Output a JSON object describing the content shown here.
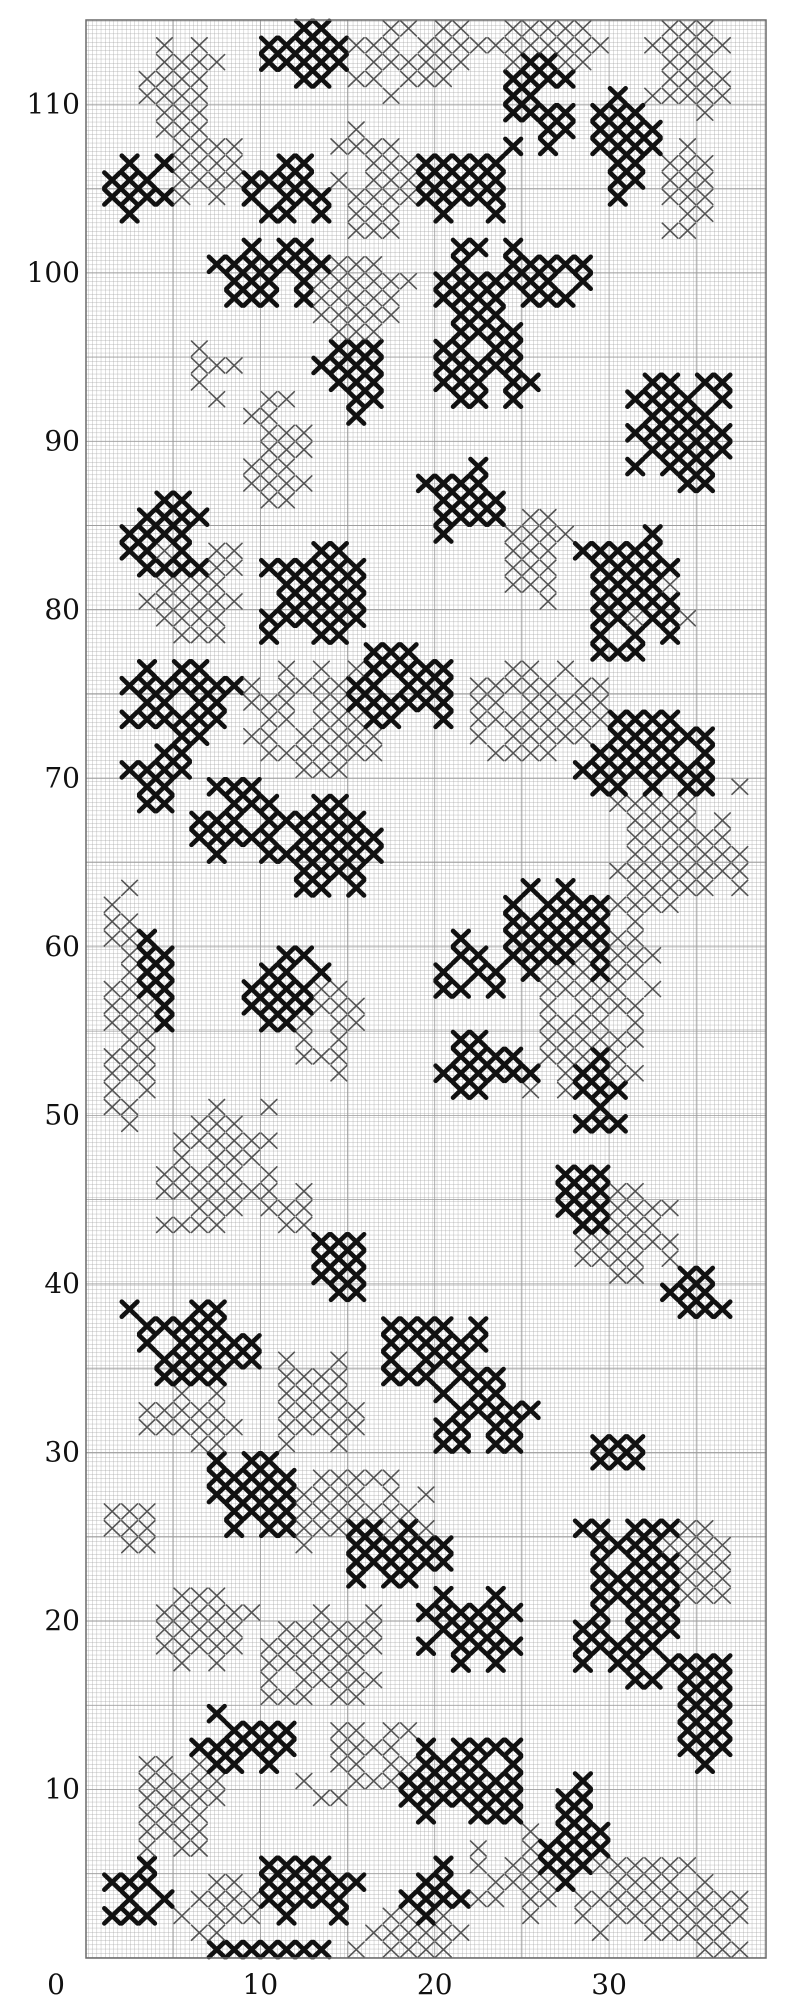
{
  "chart_data": {
    "type": "cross-stitch-chart",
    "x_axis": {
      "ticks": [
        0,
        10,
        20,
        30
      ],
      "labels": [
        "0",
        "10",
        "20",
        "30"
      ]
    },
    "y_axis": {
      "ticks": [
        10,
        20,
        30,
        40,
        50,
        60,
        70,
        80,
        90,
        100,
        110
      ],
      "labels": [
        "10",
        "20",
        "30",
        "40",
        "50",
        "60",
        "70",
        "80",
        "90",
        "100",
        "110"
      ]
    },
    "grid_cols": 39,
    "grid_rows": 115,
    "colors": {
      "background": "#ffffff",
      "grid": "#9a9a9a",
      "grid_major": "#6a6a6a",
      "dark_stitch": "#111111",
      "light_stitch": "#555555",
      "text": "#111111"
    },
    "motifs": [
      {
        "type": "dark",
        "x": [
          10,
          15
        ],
        "y": [
          111,
          115
        ]
      },
      {
        "type": "light",
        "x": [
          3,
          8
        ],
        "y": [
          108,
          114
        ]
      },
      {
        "type": "light",
        "x": [
          15,
          22
        ],
        "y": [
          110,
          115
        ]
      },
      {
        "type": "light",
        "x": [
          22,
          30
        ],
        "y": [
          112,
          115
        ]
      },
      {
        "type": "dark",
        "x": [
          24,
          28
        ],
        "y": [
          107,
          113
        ]
      },
      {
        "type": "dark",
        "x": [
          29,
          33
        ],
        "y": [
          104,
          111
        ]
      },
      {
        "type": "light",
        "x": [
          32,
          37
        ],
        "y": [
          109,
          115
        ]
      },
      {
        "type": "dark",
        "x": [
          1,
          5
        ],
        "y": [
          103,
          107
        ]
      },
      {
        "type": "light",
        "x": [
          4,
          9
        ],
        "y": [
          104,
          109
        ]
      },
      {
        "type": "dark",
        "x": [
          9,
          14
        ],
        "y": [
          103,
          107
        ]
      },
      {
        "type": "light",
        "x": [
          14,
          19
        ],
        "y": [
          102,
          109
        ]
      },
      {
        "type": "dark",
        "x": [
          19,
          24
        ],
        "y": [
          103,
          108
        ]
      },
      {
        "type": "light",
        "x": [
          33,
          36
        ],
        "y": [
          102,
          108
        ]
      },
      {
        "type": "dark",
        "x": [
          7,
          14
        ],
        "y": [
          98,
          102
        ]
      },
      {
        "type": "dark",
        "x": [
          19,
          30
        ],
        "y": [
          97,
          102
        ]
      },
      {
        "type": "light",
        "x": [
          13,
          19
        ],
        "y": [
          96,
          101
        ]
      },
      {
        "type": "dark",
        "x": [
          13,
          18
        ],
        "y": [
          91,
          96
        ]
      },
      {
        "type": "dark",
        "x": [
          20,
          26
        ],
        "y": [
          92,
          97
        ]
      },
      {
        "type": "light",
        "x": [
          5,
          9
        ],
        "y": [
          92,
          96
        ]
      },
      {
        "type": "dark",
        "x": [
          31,
          37
        ],
        "y": [
          87,
          94
        ]
      },
      {
        "type": "light",
        "x": [
          9,
          13
        ],
        "y": [
          85,
          93
        ]
      },
      {
        "type": "dark",
        "x": [
          2,
          7
        ],
        "y": [
          82,
          87
        ]
      },
      {
        "type": "light",
        "x": [
          3,
          9
        ],
        "y": [
          78,
          84
        ]
      },
      {
        "type": "dark",
        "x": [
          19,
          24
        ],
        "y": [
          84,
          89
        ]
      },
      {
        "type": "light",
        "x": [
          24,
          28
        ],
        "y": [
          80,
          86
        ]
      },
      {
        "type": "dark",
        "x": [
          10,
          16
        ],
        "y": [
          78,
          84
        ]
      },
      {
        "type": "dark",
        "x": [
          28,
          34
        ],
        "y": [
          77,
          85
        ]
      },
      {
        "type": "light",
        "x": [
          30,
          35
        ],
        "y": [
          78,
          82
        ]
      },
      {
        "type": "dark",
        "x": [
          2,
          9
        ],
        "y": [
          72,
          77
        ]
      },
      {
        "type": "light",
        "x": [
          9,
          17
        ],
        "y": [
          70,
          77
        ]
      },
      {
        "type": "dark",
        "x": [
          15,
          21
        ],
        "y": [
          73,
          78
        ]
      },
      {
        "type": "light",
        "x": [
          22,
          30
        ],
        "y": [
          71,
          77
        ]
      },
      {
        "type": "dark",
        "x": [
          28,
          36
        ],
        "y": [
          69,
          74
        ]
      },
      {
        "type": "dark",
        "x": [
          2,
          6
        ],
        "y": [
          67,
          72
        ]
      },
      {
        "type": "dark",
        "x": [
          6,
          12
        ],
        "y": [
          65,
          70
        ]
      },
      {
        "type": "dark",
        "x": [
          11,
          17
        ],
        "y": [
          63,
          69
        ]
      },
      {
        "type": "light",
        "x": [
          30,
          38
        ],
        "y": [
          62,
          70
        ]
      },
      {
        "type": "dark",
        "x": [
          24,
          30
        ],
        "y": [
          58,
          64
        ]
      },
      {
        "type": "light",
        "x": [
          26,
          33
        ],
        "y": [
          56,
          63
        ]
      },
      {
        "type": "dark",
        "x": [
          20,
          26
        ],
        "y": [
          57,
          61
        ]
      },
      {
        "type": "light",
        "x": [
          1,
          4
        ],
        "y": [
          47,
          64
        ]
      },
      {
        "type": "dark",
        "x": [
          3,
          5
        ],
        "y": [
          55,
          62
        ]
      },
      {
        "type": "dark",
        "x": [
          9,
          14
        ],
        "y": [
          55,
          60
        ]
      },
      {
        "type": "light",
        "x": [
          12,
          16
        ],
        "y": [
          52,
          58
        ]
      },
      {
        "type": "dark",
        "x": [
          20,
          26
        ],
        "y": [
          51,
          55
        ]
      },
      {
        "type": "light",
        "x": [
          25,
          32
        ],
        "y": [
          51,
          57
        ]
      },
      {
        "type": "dark",
        "x": [
          28,
          31
        ],
        "y": [
          49,
          54
        ]
      },
      {
        "type": "light",
        "x": [
          4,
          11
        ],
        "y": [
          43,
          51
        ]
      },
      {
        "type": "light",
        "x": [
          10,
          14
        ],
        "y": [
          42,
          46
        ]
      },
      {
        "type": "dark",
        "x": [
          13,
          16
        ],
        "y": [
          38,
          44
        ]
      },
      {
        "type": "dark",
        "x": [
          26,
          30
        ],
        "y": [
          43,
          48
        ]
      },
      {
        "type": "light",
        "x": [
          28,
          34
        ],
        "y": [
          40,
          46
        ]
      },
      {
        "type": "dark",
        "x": [
          33,
          37
        ],
        "y": [
          38,
          41
        ]
      },
      {
        "type": "dark",
        "x": [
          2,
          10
        ],
        "y": [
          34,
          39
        ]
      },
      {
        "type": "dark",
        "x": [
          16,
          23
        ],
        "y": [
          34,
          38
        ]
      },
      {
        "type": "light",
        "x": [
          10,
          16
        ],
        "y": [
          30,
          36
        ]
      },
      {
        "type": "dark",
        "x": [
          20,
          26
        ],
        "y": [
          30,
          35
        ]
      },
      {
        "type": "light",
        "x": [
          3,
          9
        ],
        "y": [
          30,
          34
        ]
      },
      {
        "type": "dark",
        "x": [
          29,
          32
        ],
        "y": [
          28,
          31
        ]
      },
      {
        "type": "light",
        "x": [
          1,
          4
        ],
        "y": [
          24,
          27
        ]
      },
      {
        "type": "dark",
        "x": [
          7,
          12
        ],
        "y": [
          25,
          30
        ]
      },
      {
        "type": "light",
        "x": [
          10,
          20
        ],
        "y": [
          24,
          29
        ]
      },
      {
        "type": "dark",
        "x": [
          14,
          21
        ],
        "y": [
          22,
          26
        ]
      },
      {
        "type": "dark",
        "x": [
          28,
          34
        ],
        "y": [
          16,
          26
        ]
      },
      {
        "type": "light",
        "x": [
          33,
          37
        ],
        "y": [
          20,
          26
        ]
      },
      {
        "type": "light",
        "x": [
          4,
          10
        ],
        "y": [
          17,
          22
        ]
      },
      {
        "type": "dark",
        "x": [
          19,
          25
        ],
        "y": [
          17,
          22
        ]
      },
      {
        "type": "light",
        "x": [
          10,
          17
        ],
        "y": [
          15,
          21
        ]
      },
      {
        "type": "dark",
        "x": [
          34,
          37
        ],
        "y": [
          11,
          19
        ]
      },
      {
        "type": "dark",
        "x": [
          6,
          12
        ],
        "y": [
          11,
          15
        ]
      },
      {
        "type": "light",
        "x": [
          12,
          20
        ],
        "y": [
          9,
          14
        ]
      },
      {
        "type": "dark",
        "x": [
          18,
          25
        ],
        "y": [
          8,
          13
        ]
      },
      {
        "type": "dark",
        "x": [
          26,
          30
        ],
        "y": [
          4,
          11
        ]
      },
      {
        "type": "light",
        "x": [
          22,
          27
        ],
        "y": [
          2,
          8
        ]
      },
      {
        "type": "light",
        "x": [
          2,
          8
        ],
        "y": [
          6,
          12
        ]
      },
      {
        "type": "dark",
        "x": [
          1,
          5
        ],
        "y": [
          2,
          6
        ]
      },
      {
        "type": "light",
        "x": [
          5,
          10
        ],
        "y": [
          1,
          5
        ]
      },
      {
        "type": "dark",
        "x": [
          10,
          16
        ],
        "y": [
          2,
          6
        ]
      },
      {
        "type": "dark",
        "x": [
          18,
          22
        ],
        "y": [
          2,
          6
        ]
      },
      {
        "type": "light",
        "x": [
          15,
          22
        ],
        "y": [
          0,
          3
        ]
      },
      {
        "type": "dark",
        "x": [
          7,
          14
        ],
        "y": [
          0,
          1
        ]
      },
      {
        "type": "light",
        "x": [
          28,
          36
        ],
        "y": [
          1,
          6
        ]
      },
      {
        "type": "light",
        "x": [
          34,
          38
        ],
        "y": [
          0,
          5
        ]
      }
    ]
  }
}
